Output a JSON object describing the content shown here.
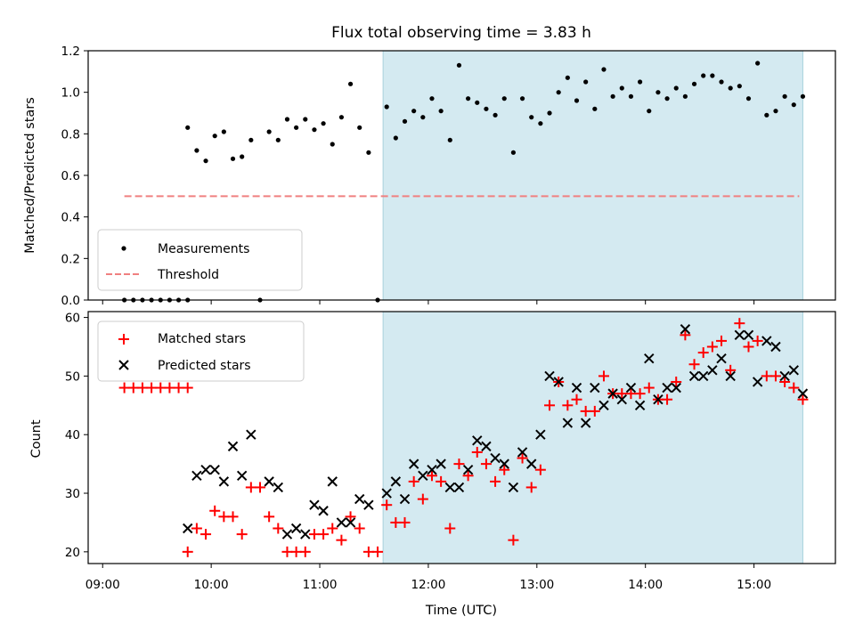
{
  "chart_data": [
    {
      "type": "scatter",
      "title": "Flux total observing time = 3.83 h",
      "xlabel": "",
      "ylabel": "Matched/Predicted stars",
      "xlim": [
        "08:52",
        "15:45"
      ],
      "ylim": [
        0,
        1.2
      ],
      "yticks": [
        "0.0",
        "0.2",
        "0.4",
        "0.6",
        "0.8",
        "1.0",
        "1.2"
      ],
      "shaded_x_range": [
        "11:35",
        "15:27"
      ],
      "shade_color": "#d4eaf1",
      "legend_position": "lower-left",
      "series": [
        {
          "name": "Measurements",
          "marker": "dot",
          "color": "#000000",
          "points": [
            [
              "09:12",
              0
            ],
            [
              "09:17",
              0
            ],
            [
              "09:22",
              0
            ],
            [
              "09:27",
              0
            ],
            [
              "09:32",
              0
            ],
            [
              "09:37",
              0
            ],
            [
              "09:42",
              0
            ],
            [
              "09:47",
              0
            ],
            [
              "09:47",
              0.83
            ],
            [
              "09:52",
              0.72
            ],
            [
              "09:57",
              0.67
            ],
            [
              "10:02",
              0.79
            ],
            [
              "10:07",
              0.81
            ],
            [
              "10:12",
              0.68
            ],
            [
              "10:17",
              0.69
            ],
            [
              "10:22",
              0.77
            ],
            [
              "10:27",
              0
            ],
            [
              "10:32",
              0.81
            ],
            [
              "10:37",
              0.77
            ],
            [
              "10:42",
              0.87
            ],
            [
              "10:47",
              0.83
            ],
            [
              "10:52",
              0.87
            ],
            [
              "10:57",
              0.82
            ],
            [
              "11:02",
              0.85
            ],
            [
              "11:07",
              0.75
            ],
            [
              "11:12",
              0.88
            ],
            [
              "11:17",
              1.04
            ],
            [
              "11:22",
              0.83
            ],
            [
              "11:27",
              0.71
            ],
            [
              "11:32",
              0
            ],
            [
              "11:37",
              0.93
            ],
            [
              "11:42",
              0.78
            ],
            [
              "11:47",
              0.86
            ],
            [
              "11:52",
              0.91
            ],
            [
              "11:57",
              0.88
            ],
            [
              "12:02",
              0.97
            ],
            [
              "12:07",
              0.91
            ],
            [
              "12:12",
              0.77
            ],
            [
              "12:17",
              1.13
            ],
            [
              "12:22",
              0.97
            ],
            [
              "12:27",
              0.95
            ],
            [
              "12:32",
              0.92
            ],
            [
              "12:37",
              0.89
            ],
            [
              "12:42",
              0.97
            ],
            [
              "12:47",
              0.71
            ],
            [
              "12:52",
              0.97
            ],
            [
              "12:57",
              0.88
            ],
            [
              "13:02",
              0.85
            ],
            [
              "13:07",
              0.9
            ],
            [
              "13:12",
              1.0
            ],
            [
              "13:17",
              1.07
            ],
            [
              "13:22",
              0.96
            ],
            [
              "13:27",
              1.05
            ],
            [
              "13:32",
              0.92
            ],
            [
              "13:37",
              1.11
            ],
            [
              "13:42",
              0.98
            ],
            [
              "13:47",
              1.02
            ],
            [
              "13:52",
              0.98
            ],
            [
              "13:57",
              1.05
            ],
            [
              "14:02",
              0.91
            ],
            [
              "14:07",
              1.0
            ],
            [
              "14:12",
              0.97
            ],
            [
              "14:17",
              1.02
            ],
            [
              "14:22",
              0.98
            ],
            [
              "14:27",
              1.04
            ],
            [
              "14:32",
              1.08
            ],
            [
              "14:37",
              1.08
            ],
            [
              "14:42",
              1.05
            ],
            [
              "14:47",
              1.02
            ],
            [
              "14:52",
              1.03
            ],
            [
              "14:57",
              0.97
            ],
            [
              "15:02",
              1.14
            ],
            [
              "15:07",
              0.89
            ],
            [
              "15:12",
              0.91
            ],
            [
              "15:17",
              0.98
            ],
            [
              "15:22",
              0.94
            ],
            [
              "15:27",
              0.98
            ]
          ]
        },
        {
          "name": "Threshold",
          "marker": "dashed-line",
          "color": "#f08080",
          "points": [
            [
              "09:12",
              0.5
            ],
            [
              "15:25",
              0.5
            ]
          ]
        }
      ]
    },
    {
      "type": "scatter",
      "title": "",
      "xlabel": "Time (UTC)",
      "ylabel": "Count",
      "xlim": [
        "08:52",
        "15:45"
      ],
      "ylim": [
        18,
        61
      ],
      "yticks": [
        "20",
        "30",
        "40",
        "50",
        "60"
      ],
      "xticks": [
        "09:00",
        "10:00",
        "11:00",
        "12:00",
        "13:00",
        "14:00",
        "15:00"
      ],
      "shaded_x_range": [
        "11:35",
        "15:27"
      ],
      "shade_color": "#d4eaf1",
      "legend_position": "upper-left",
      "series": [
        {
          "name": "Matched stars",
          "marker": "plus",
          "color": "#ff0000",
          "points": [
            [
              "09:12",
              48
            ],
            [
              "09:17",
              48
            ],
            [
              "09:22",
              48
            ],
            [
              "09:27",
              48
            ],
            [
              "09:32",
              48
            ],
            [
              "09:37",
              48
            ],
            [
              "09:42",
              48
            ],
            [
              "09:47",
              48
            ],
            [
              "09:47",
              20
            ],
            [
              "09:52",
              24
            ],
            [
              "09:57",
              23
            ],
            [
              "10:02",
              27
            ],
            [
              "10:07",
              26
            ],
            [
              "10:12",
              26
            ],
            [
              "10:17",
              23
            ],
            [
              "10:22",
              31
            ],
            [
              "10:27",
              31
            ],
            [
              "10:32",
              26
            ],
            [
              "10:37",
              24
            ],
            [
              "10:42",
              20
            ],
            [
              "10:47",
              20
            ],
            [
              "10:52",
              20
            ],
            [
              "10:57",
              23
            ],
            [
              "11:02",
              23
            ],
            [
              "11:07",
              24
            ],
            [
              "11:12",
              22
            ],
            [
              "11:17",
              26
            ],
            [
              "11:22",
              24
            ],
            [
              "11:27",
              20
            ],
            [
              "11:32",
              20
            ],
            [
              "11:37",
              28
            ],
            [
              "11:42",
              25
            ],
            [
              "11:47",
              25
            ],
            [
              "11:52",
              32
            ],
            [
              "11:57",
              29
            ],
            [
              "12:02",
              33
            ],
            [
              "12:07",
              32
            ],
            [
              "12:12",
              24
            ],
            [
              "12:17",
              35
            ],
            [
              "12:22",
              33
            ],
            [
              "12:27",
              37
            ],
            [
              "12:32",
              35
            ],
            [
              "12:37",
              32
            ],
            [
              "12:42",
              34
            ],
            [
              "12:47",
              22
            ],
            [
              "12:52",
              36
            ],
            [
              "12:57",
              31
            ],
            [
              "13:02",
              34
            ],
            [
              "13:07",
              45
            ],
            [
              "13:12",
              49
            ],
            [
              "13:17",
              45
            ],
            [
              "13:22",
              46
            ],
            [
              "13:27",
              44
            ],
            [
              "13:32",
              44
            ],
            [
              "13:37",
              50
            ],
            [
              "13:42",
              47
            ],
            [
              "13:47",
              47
            ],
            [
              "13:52",
              47
            ],
            [
              "13:57",
              47
            ],
            [
              "14:02",
              48
            ],
            [
              "14:07",
              46
            ],
            [
              "14:12",
              46
            ],
            [
              "14:17",
              49
            ],
            [
              "14:22",
              57
            ],
            [
              "14:27",
              52
            ],
            [
              "14:32",
              54
            ],
            [
              "14:37",
              55
            ],
            [
              "14:42",
              56
            ],
            [
              "14:47",
              51
            ],
            [
              "14:52",
              59
            ],
            [
              "14:57",
              55
            ],
            [
              "15:02",
              56
            ],
            [
              "15:07",
              50
            ],
            [
              "15:12",
              50
            ],
            [
              "15:17",
              49
            ],
            [
              "15:22",
              48
            ],
            [
              "15:27",
              46
            ]
          ]
        },
        {
          "name": "Predicted stars",
          "marker": "x",
          "color": "#000000",
          "points": [
            [
              "09:47",
              24
            ],
            [
              "09:52",
              33
            ],
            [
              "09:57",
              34
            ],
            [
              "10:02",
              34
            ],
            [
              "10:07",
              32
            ],
            [
              "10:12",
              38
            ],
            [
              "10:17",
              33
            ],
            [
              "10:22",
              40
            ],
            [
              "10:32",
              32
            ],
            [
              "10:37",
              31
            ],
            [
              "10:42",
              23
            ],
            [
              "10:47",
              24
            ],
            [
              "10:52",
              23
            ],
            [
              "10:57",
              28
            ],
            [
              "11:02",
              27
            ],
            [
              "11:07",
              32
            ],
            [
              "11:12",
              25
            ],
            [
              "11:17",
              25
            ],
            [
              "11:22",
              29
            ],
            [
              "11:27",
              28
            ],
            [
              "11:37",
              30
            ],
            [
              "11:42",
              32
            ],
            [
              "11:47",
              29
            ],
            [
              "11:52",
              35
            ],
            [
              "11:57",
              33
            ],
            [
              "12:02",
              34
            ],
            [
              "12:07",
              35
            ],
            [
              "12:12",
              31
            ],
            [
              "12:17",
              31
            ],
            [
              "12:22",
              34
            ],
            [
              "12:27",
              39
            ],
            [
              "12:32",
              38
            ],
            [
              "12:37",
              36
            ],
            [
              "12:42",
              35
            ],
            [
              "12:47",
              31
            ],
            [
              "12:52",
              37
            ],
            [
              "12:57",
              35
            ],
            [
              "13:02",
              40
            ],
            [
              "13:07",
              50
            ],
            [
              "13:12",
              49
            ],
            [
              "13:17",
              42
            ],
            [
              "13:22",
              48
            ],
            [
              "13:27",
              42
            ],
            [
              "13:32",
              48
            ],
            [
              "13:37",
              45
            ],
            [
              "13:42",
              47
            ],
            [
              "13:47",
              46
            ],
            [
              "13:52",
              48
            ],
            [
              "13:57",
              45
            ],
            [
              "14:02",
              53
            ],
            [
              "14:07",
              46
            ],
            [
              "14:12",
              48
            ],
            [
              "14:17",
              48
            ],
            [
              "14:22",
              58
            ],
            [
              "14:27",
              50
            ],
            [
              "14:32",
              50
            ],
            [
              "14:37",
              51
            ],
            [
              "14:42",
              53
            ],
            [
              "14:47",
              50
            ],
            [
              "14:52",
              57
            ],
            [
              "14:57",
              57
            ],
            [
              "15:02",
              49
            ],
            [
              "15:07",
              56
            ],
            [
              "15:12",
              55
            ],
            [
              "15:17",
              50
            ],
            [
              "15:22",
              51
            ],
            [
              "15:27",
              47
            ]
          ]
        }
      ]
    }
  ]
}
